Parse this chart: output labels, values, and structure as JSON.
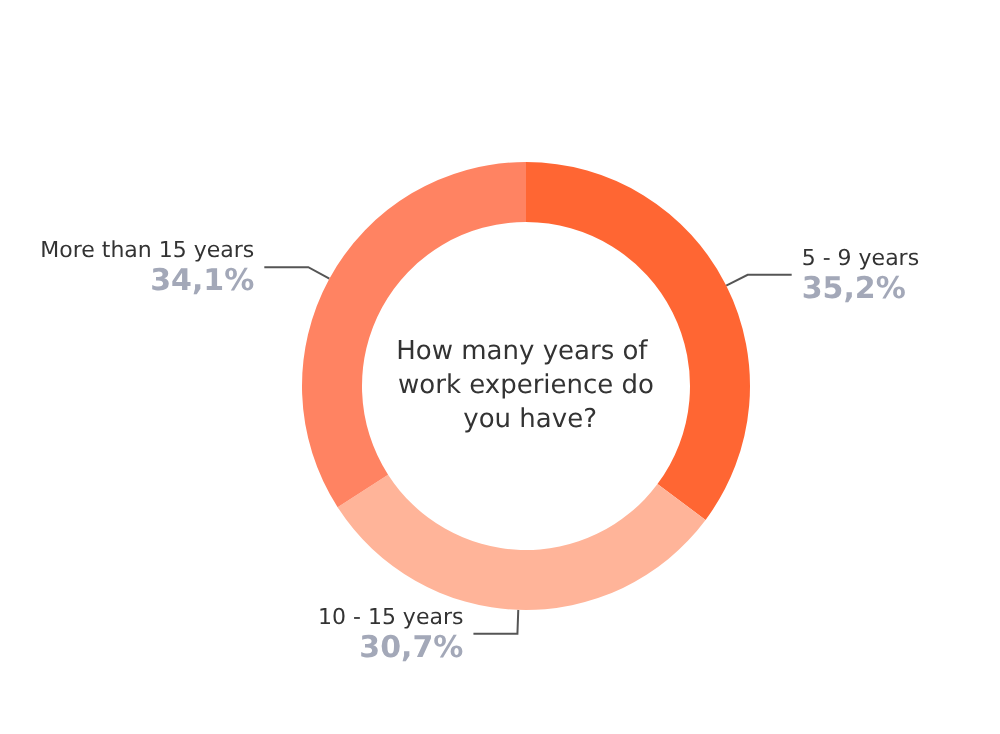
{
  "chart_data": {
    "type": "donut",
    "title": "How many years of work experience do you have?",
    "categories": [
      "5 - 9 years",
      "10 - 15 years",
      "More than 15 years"
    ],
    "values": [
      35.2,
      30.7,
      34.1
    ],
    "value_labels": [
      "35,2%",
      "30,7%",
      "34,1%"
    ],
    "colors": [
      "#ff6633",
      "#ffb499",
      "#ff8362"
    ]
  }
}
